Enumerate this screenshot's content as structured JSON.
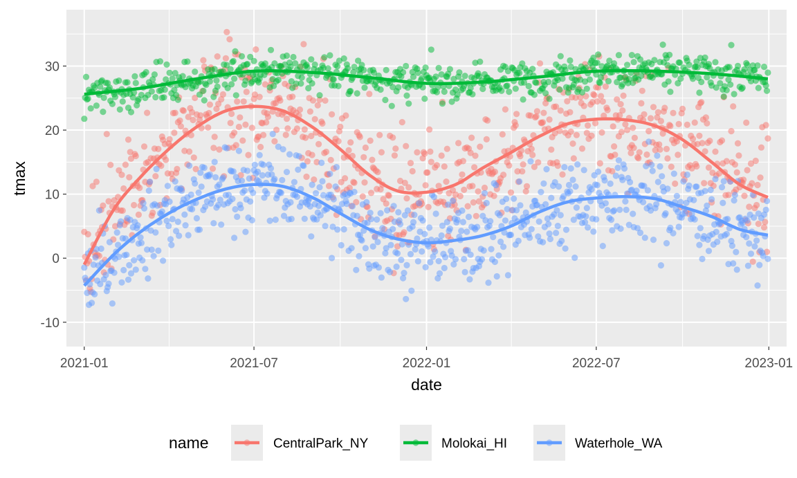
{
  "chart_data": {
    "type": "scatter",
    "title": "",
    "xlabel": "date",
    "ylabel": "tmax",
    "x_ticks": [
      "2021-01",
      "2021-07",
      "2022-01",
      "2022-07",
      "2023-01"
    ],
    "y_ticks": [
      -10,
      0,
      10,
      20,
      30
    ],
    "xlim": [
      "2020-12-13",
      "2023-01-20"
    ],
    "ylim": [
      -13.8,
      38.8
    ],
    "grid": true,
    "legend": {
      "title": "name",
      "position": "bottom"
    },
    "smooth_lines": true,
    "point_alpha": 0.5,
    "series": [
      {
        "name": "CentralPark_NY",
        "color": "#F8766D",
        "smooth": [
          {
            "x": "2021-01-01",
            "y": -1
          },
          {
            "x": "2021-02-01",
            "y": 7.5
          },
          {
            "x": "2021-03-01",
            "y": 12.5
          },
          {
            "x": "2021-04-01",
            "y": 17
          },
          {
            "x": "2021-05-01",
            "y": 20.5
          },
          {
            "x": "2021-06-01",
            "y": 23
          },
          {
            "x": "2021-07-01",
            "y": 23.7
          },
          {
            "x": "2021-08-01",
            "y": 23
          },
          {
            "x": "2021-09-01",
            "y": 20.5
          },
          {
            "x": "2021-10-01",
            "y": 17
          },
          {
            "x": "2021-11-01",
            "y": 13
          },
          {
            "x": "2021-12-01",
            "y": 10.5
          },
          {
            "x": "2022-01-01",
            "y": 10.3
          },
          {
            "x": "2022-02-01",
            "y": 11.5
          },
          {
            "x": "2022-03-01",
            "y": 14
          },
          {
            "x": "2022-04-01",
            "y": 16.5
          },
          {
            "x": "2022-05-01",
            "y": 19
          },
          {
            "x": "2022-06-01",
            "y": 21
          },
          {
            "x": "2022-07-01",
            "y": 21.7
          },
          {
            "x": "2022-08-01",
            "y": 21.6
          },
          {
            "x": "2022-09-01",
            "y": 20.7
          },
          {
            "x": "2022-10-01",
            "y": 18.5
          },
          {
            "x": "2022-11-01",
            "y": 15
          },
          {
            "x": "2022-12-01",
            "y": 11.5
          },
          {
            "x": "2022-12-31",
            "y": 9.5
          }
        ]
      },
      {
        "name": "Molokai_HI",
        "color": "#00BA38",
        "smooth": [
          {
            "x": "2021-01-01",
            "y": 25.6
          },
          {
            "x": "2021-03-01",
            "y": 26.5
          },
          {
            "x": "2021-05-01",
            "y": 28
          },
          {
            "x": "2021-07-01",
            "y": 29.2
          },
          {
            "x": "2021-09-01",
            "y": 29
          },
          {
            "x": "2021-11-01",
            "y": 28.2
          },
          {
            "x": "2022-01-01",
            "y": 27.3
          },
          {
            "x": "2022-03-01",
            "y": 27.5
          },
          {
            "x": "2022-05-01",
            "y": 28.3
          },
          {
            "x": "2022-07-01",
            "y": 29.2
          },
          {
            "x": "2022-09-01",
            "y": 29.2
          },
          {
            "x": "2022-11-01",
            "y": 28.8
          },
          {
            "x": "2022-12-31",
            "y": 28
          }
        ]
      },
      {
        "name": "Waterhole_WA",
        "color": "#619CFF",
        "smooth": [
          {
            "x": "2021-01-01",
            "y": -4.3
          },
          {
            "x": "2021-02-01",
            "y": 0.5
          },
          {
            "x": "2021-03-01",
            "y": 4
          },
          {
            "x": "2021-04-01",
            "y": 7
          },
          {
            "x": "2021-05-01",
            "y": 9.2
          },
          {
            "x": "2021-06-01",
            "y": 10.8
          },
          {
            "x": "2021-07-01",
            "y": 11.5
          },
          {
            "x": "2021-08-01",
            "y": 11.2
          },
          {
            "x": "2021-09-01",
            "y": 9.5
          },
          {
            "x": "2021-10-01",
            "y": 7
          },
          {
            "x": "2021-11-01",
            "y": 4.5
          },
          {
            "x": "2021-12-01",
            "y": 3
          },
          {
            "x": "2022-01-01",
            "y": 2.4
          },
          {
            "x": "2022-02-01",
            "y": 2.8
          },
          {
            "x": "2022-03-01",
            "y": 3.5
          },
          {
            "x": "2022-04-01",
            "y": 5
          },
          {
            "x": "2022-05-01",
            "y": 7.2
          },
          {
            "x": "2022-06-01",
            "y": 8.8
          },
          {
            "x": "2022-07-01",
            "y": 9.4
          },
          {
            "x": "2022-08-01",
            "y": 9.6
          },
          {
            "x": "2022-09-01",
            "y": 9.3
          },
          {
            "x": "2022-10-01",
            "y": 8
          },
          {
            "x": "2022-11-01",
            "y": 6.5
          },
          {
            "x": "2022-12-01",
            "y": 4.5
          },
          {
            "x": "2022-12-31",
            "y": 3.6
          }
        ]
      }
    ]
  }
}
